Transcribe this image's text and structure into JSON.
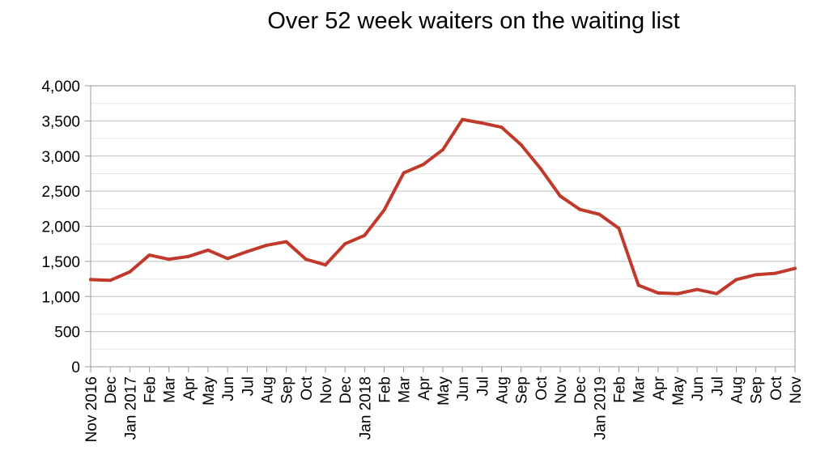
{
  "chart_data": {
    "type": "line",
    "title": "Over 52 week waiters on the waiting list",
    "xlabel": "",
    "ylabel": "",
    "ylim": [
      0,
      4000
    ],
    "y_ticks": [
      "0",
      "500",
      "1,000",
      "1,500",
      "2,000",
      "2,500",
      "3,000",
      "3,500",
      "4,000"
    ],
    "y_tick_values": [
      0,
      500,
      1000,
      1500,
      2000,
      2500,
      3000,
      3500,
      4000
    ],
    "grid": true,
    "legend": "none",
    "line_color": "#c0392b",
    "categories": [
      "Nov 2016",
      "Dec",
      "Jan 2017",
      "Feb",
      "Mar",
      "Apr",
      "May",
      "Jun",
      "Jul",
      "Aug",
      "Sep",
      "Oct",
      "Nov",
      "Dec",
      "Jan 2018",
      "Feb",
      "Mar",
      "Apr",
      "May",
      "Jun",
      "Jul",
      "Aug",
      "Sep",
      "Oct",
      "Nov",
      "Dec",
      "Jan 2019",
      "Feb",
      "Mar",
      "Apr",
      "May",
      "Jun",
      "Jul",
      "Aug",
      "Sep",
      "Oct",
      "Nov"
    ],
    "series": [
      {
        "values": [
          1240,
          1230,
          1350,
          1590,
          1530,
          1570,
          1660,
          1540,
          1640,
          1730,
          1780,
          1530,
          1450,
          1750,
          1870,
          2230,
          2760,
          2880,
          3090,
          3520,
          3470,
          3410,
          3160,
          2820,
          2430,
          2240,
          2170,
          1970,
          1160,
          1050,
          1040,
          1100,
          1040,
          1240,
          1310,
          1330,
          1400
        ]
      }
    ]
  }
}
